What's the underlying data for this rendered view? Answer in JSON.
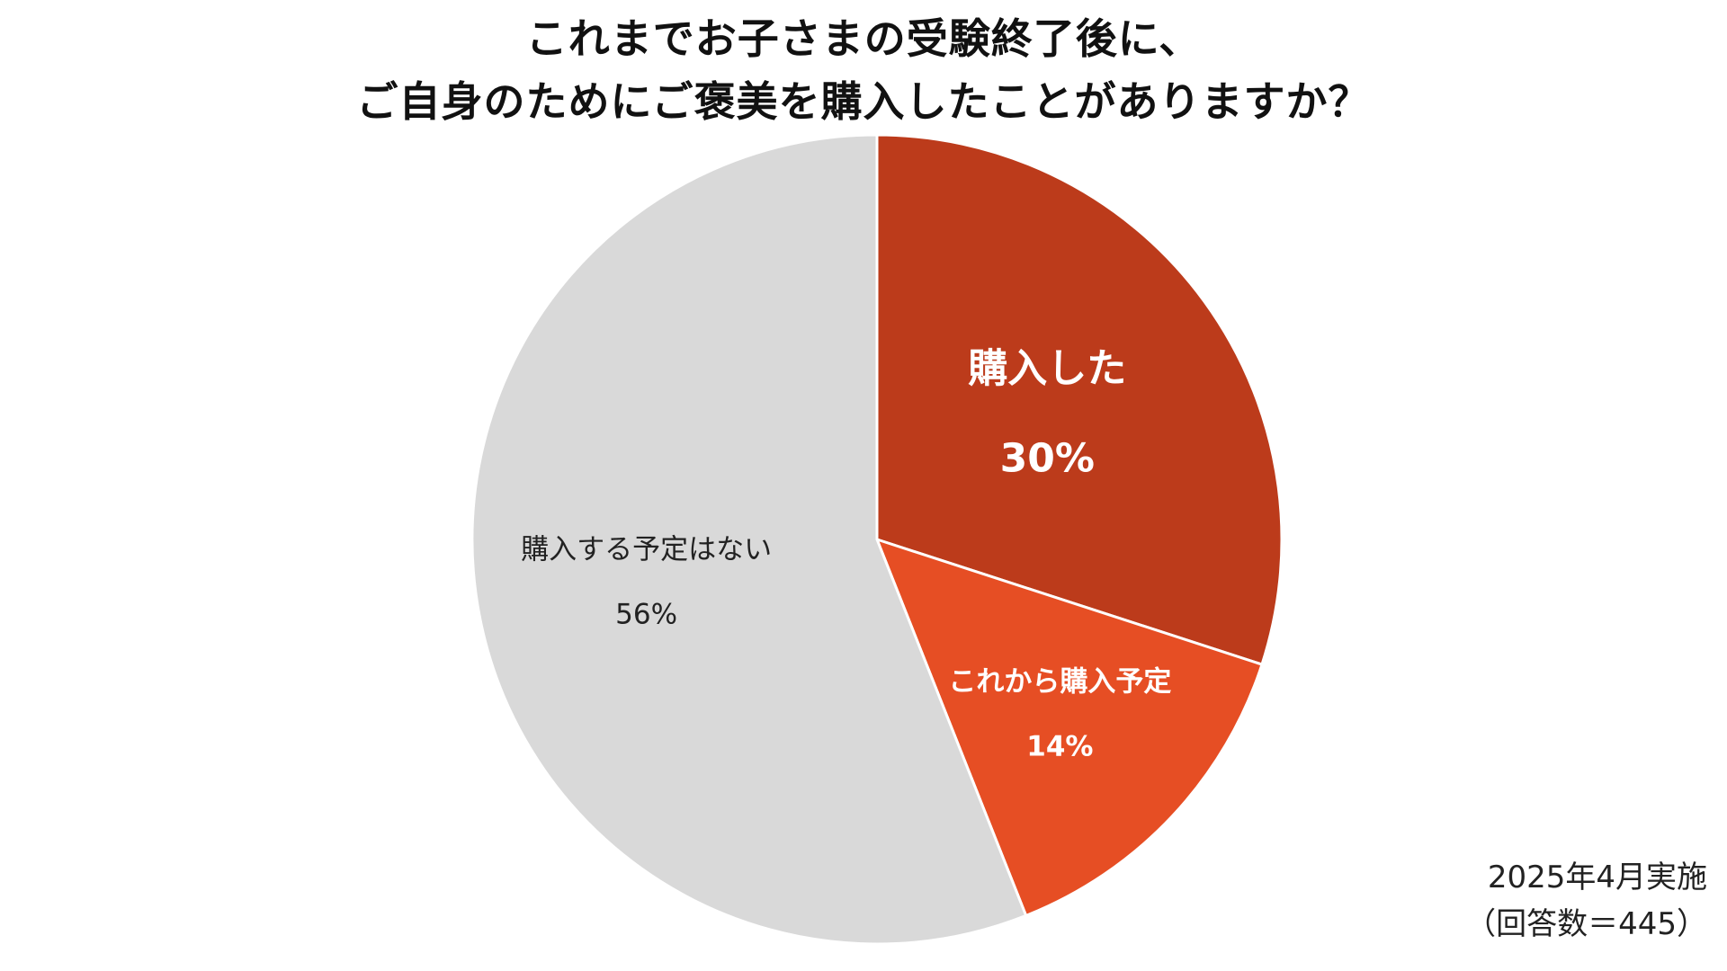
{
  "title_lines": [
    "これまでお子さまの受験終了後に、",
    "ご自身のためにご褒美を購入したことがありますか？"
  ],
  "note_lines": [
    "2025年4月実施",
    "（回答数＝445）"
  ],
  "chart_data": {
    "type": "pie",
    "title": "これまでお子さまの受験終了後に、ご自身のためにご褒美を購入したことがありますか？",
    "slices": [
      {
        "label": "購入した",
        "value": 30,
        "value_label": "30%",
        "color": "#BC3B1B",
        "label_color": "#ffffff",
        "emphasis": "large"
      },
      {
        "label": "これから購入予定",
        "value": 14,
        "value_label": "14%",
        "color": "#E64E24",
        "label_color": "#ffffff",
        "emphasis": "medium"
      },
      {
        "label": "購入する予定はない",
        "value": 56,
        "value_label": "56%",
        "color": "#D9D9D9",
        "label_color": "#222222",
        "emphasis": "normal"
      }
    ],
    "start": "12 o'clock",
    "direction": "clockwise",
    "legend": "none"
  }
}
